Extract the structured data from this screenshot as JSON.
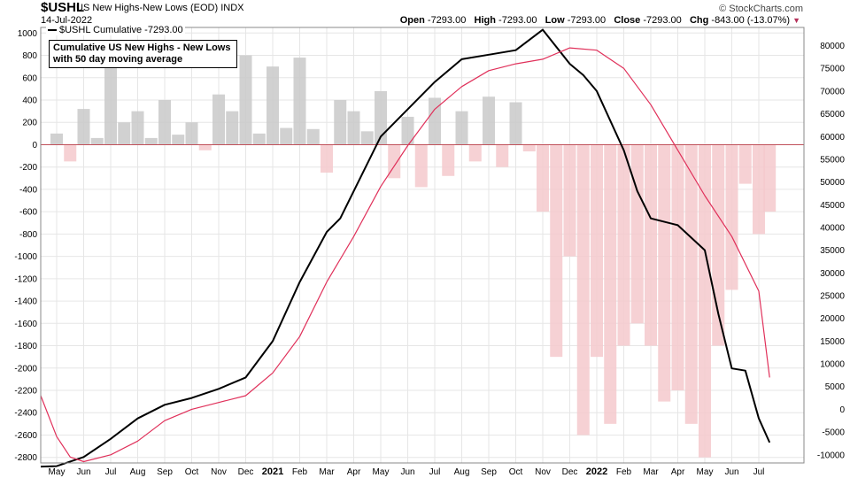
{
  "header": {
    "symbol": "$USHL",
    "description": "US New Highs-New Lows (EOD)  INDX",
    "date": "14-Jul-2022",
    "brand": "© StockCharts.com",
    "open_label": "Open",
    "open": "-7293.00",
    "high_label": "High",
    "high": "-7293.00",
    "low_label": "Low",
    "low": "-7293.00",
    "close_label": "Close",
    "close": "-7293.00",
    "chg_label": "Chg",
    "chg": "-843.00 (-13.07%)"
  },
  "legend": {
    "label": "$USHL Cumulative -7293.00"
  },
  "annotation": {
    "line1": "Cumulative US New Highs - New Lows",
    "line2": "with 50 day moving average"
  },
  "colors": {
    "bg": "#ffffff",
    "grid": "#e6e6e6",
    "cumulative": "#000000",
    "moving_average": "#e0305a",
    "bars_positive": "#c9c9c9",
    "bars_negative": "#f4c9cc",
    "zero_line": "#c0505a"
  },
  "chart_data": {
    "type": "line",
    "title": "$USHL US New Highs-New Lows (EOD)",
    "x_tick_labels": [
      "May",
      "Jun",
      "Jul",
      "Aug",
      "Sep",
      "Oct",
      "Nov",
      "Dec",
      "2021",
      "Feb",
      "Mar",
      "Apr",
      "May",
      "Jun",
      "Jul",
      "Aug",
      "Sep",
      "Oct",
      "Nov",
      "Dec",
      "2022",
      "Feb",
      "Mar",
      "Apr",
      "May",
      "Jun",
      "Jul"
    ],
    "x_year_labels": [
      "2021",
      "2022"
    ],
    "left_axis": {
      "ylim": [
        -2850,
        1050
      ],
      "ticks": [
        1000,
        800,
        600,
        400,
        200,
        0,
        -200,
        -400,
        -600,
        -800,
        -1000,
        -1200,
        -1400,
        -1600,
        -1800,
        -2000,
        -2200,
        -2400,
        -2600,
        -2800
      ]
    },
    "right_axis": {
      "ylim": [
        -11800,
        84000
      ],
      "ticks": [
        80000,
        75000,
        70000,
        65000,
        60000,
        55000,
        50000,
        45000,
        40000,
        35000,
        30000,
        25000,
        20000,
        15000,
        10000,
        5000,
        0,
        -5000,
        -10000
      ]
    },
    "x_months_index": [
      0,
      1,
      2,
      3,
      4,
      5,
      6,
      7,
      8,
      9,
      10,
      11,
      12,
      13,
      14,
      15,
      16,
      17,
      18,
      19,
      20,
      21,
      22,
      23,
      24,
      25,
      26
    ],
    "series": [
      {
        "name": "$USHL Cumulative",
        "axis": "right",
        "x": [
          -0.6,
          0,
          1,
          2,
          3,
          4,
          5,
          6,
          7,
          8,
          9,
          10,
          10.5,
          11,
          12,
          13,
          14,
          15,
          16,
          17,
          18,
          19,
          19.5,
          20,
          21,
          21.5,
          22,
          23,
          24,
          24.5,
          25,
          25.5,
          26,
          26.4
        ],
        "values": [
          -12600,
          -12500,
          -10500,
          -6500,
          -2000,
          1000,
          2500,
          4500,
          7000,
          15000,
          28000,
          39000,
          42000,
          48000,
          60000,
          66000,
          72000,
          77000,
          78000,
          79000,
          83500,
          76000,
          73500,
          70000,
          57000,
          48000,
          42000,
          40500,
          35000,
          21000,
          9000,
          8500,
          -2000,
          -7293
        ]
      },
      {
        "name": "50 day moving average",
        "axis": "right",
        "x": [
          -0.6,
          0,
          0.5,
          1,
          2,
          3,
          4,
          5,
          6,
          7,
          8,
          9,
          10,
          11,
          12,
          13,
          14,
          15,
          16,
          17,
          18,
          19,
          20,
          21,
          22,
          23,
          24,
          25,
          26,
          26.4
        ],
        "values": [
          3000,
          -6000,
          -10500,
          -11500,
          -10000,
          -7000,
          -2500,
          0,
          1500,
          3000,
          8000,
          16000,
          28000,
          38000,
          49000,
          58000,
          66000,
          71000,
          74500,
          76000,
          77000,
          79500,
          79000,
          75000,
          67000,
          57000,
          47000,
          38000,
          26000,
          7000
        ]
      }
    ],
    "bars": {
      "name": "US New Highs-New Lows",
      "axis": "left",
      "x": [
        0,
        0.5,
        1,
        1.5,
        2,
        2.5,
        3,
        3.5,
        4,
        4.5,
        5,
        5.5,
        6,
        6.5,
        7,
        7.5,
        8,
        8.5,
        9,
        9.5,
        10,
        10.5,
        11,
        11.5,
        12,
        12.5,
        13,
        13.5,
        14,
        14.5,
        15,
        15.5,
        16,
        16.5,
        17,
        17.5,
        18,
        18.5,
        19,
        19.5,
        20,
        20.5,
        21,
        21.5,
        22,
        22.5,
        23,
        23.5,
        24,
        24.5,
        25,
        25.5,
        26,
        26.4
      ],
      "values": [
        100,
        -150,
        320,
        60,
        760,
        200,
        300,
        60,
        400,
        90,
        200,
        -50,
        450,
        300,
        800,
        100,
        700,
        150,
        780,
        140,
        -250,
        400,
        300,
        120,
        480,
        -300,
        250,
        -380,
        420,
        -280,
        300,
        -150,
        430,
        -200,
        380,
        -60,
        -600,
        -1900,
        -1000,
        -2600,
        -1900,
        -2500,
        -1800,
        -1600,
        -1800,
        -2300,
        -2200,
        -2500,
        -2800,
        -1800,
        -1300,
        -350,
        -800,
        -600
      ]
    }
  }
}
